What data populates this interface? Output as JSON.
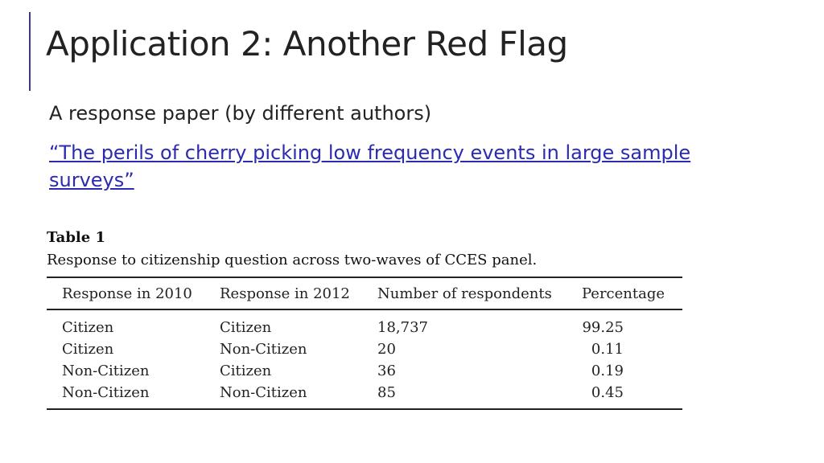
{
  "slide": {
    "title": "Application 2: Another Red Flag",
    "subtitle": "A response paper (by different authors)",
    "link_text": "“The perils of cherry picking low frequency events in large sample surveys”"
  },
  "table": {
    "label": "Table 1",
    "caption": "Response to citizenship question across two-waves of CCES panel.",
    "headers": [
      "Response in 2010",
      "Response in 2012",
      "Number of respondents",
      "Percentage"
    ],
    "rows": [
      [
        "Citizen",
        "Citizen",
        "18,737",
        "99.25"
      ],
      [
        "Citizen",
        "Non-Citizen",
        "20",
        "0.11"
      ],
      [
        "Non-Citizen",
        "Citizen",
        "36",
        "0.19"
      ],
      [
        "Non-Citizen",
        "Non-Citizen",
        "85",
        "0.45"
      ]
    ]
  },
  "colors": {
    "accent": "#3b3b78",
    "link": "#2b2bb0",
    "text": "#222222"
  }
}
